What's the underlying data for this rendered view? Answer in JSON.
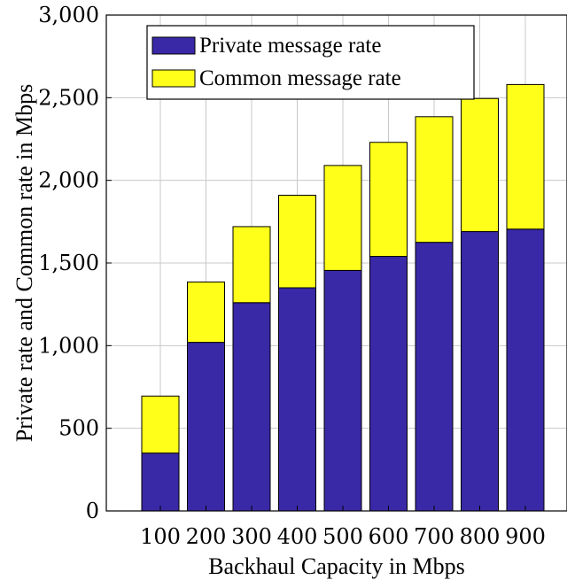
{
  "chart_data": {
    "type": "bar",
    "stacked": true,
    "categories": [
      "100",
      "200",
      "300",
      "400",
      "500",
      "600",
      "700",
      "800",
      "900"
    ],
    "series": [
      {
        "name": "Private message rate",
        "values": [
          350,
          1020,
          1260,
          1350,
          1455,
          1540,
          1625,
          1690,
          1705
        ],
        "color": "#3a29a6"
      },
      {
        "name": "Common message rate",
        "values": [
          345,
          365,
          460,
          560,
          635,
          690,
          760,
          805,
          875
        ],
        "color": "#ffff1a"
      }
    ],
    "xlabel": "Backhaul Capacity in Mbps",
    "ylabel": "Private rate and Common rate in Mbps",
    "ylim": [
      0,
      3000
    ],
    "yticks": [
      0,
      500,
      1000,
      1500,
      2000,
      2500,
      3000
    ],
    "ytick_labels": [
      "0",
      "500",
      "1,000",
      "1,500",
      "2,000",
      "2,500",
      "3,000"
    ],
    "grid": true,
    "legend_position": "top-left"
  }
}
